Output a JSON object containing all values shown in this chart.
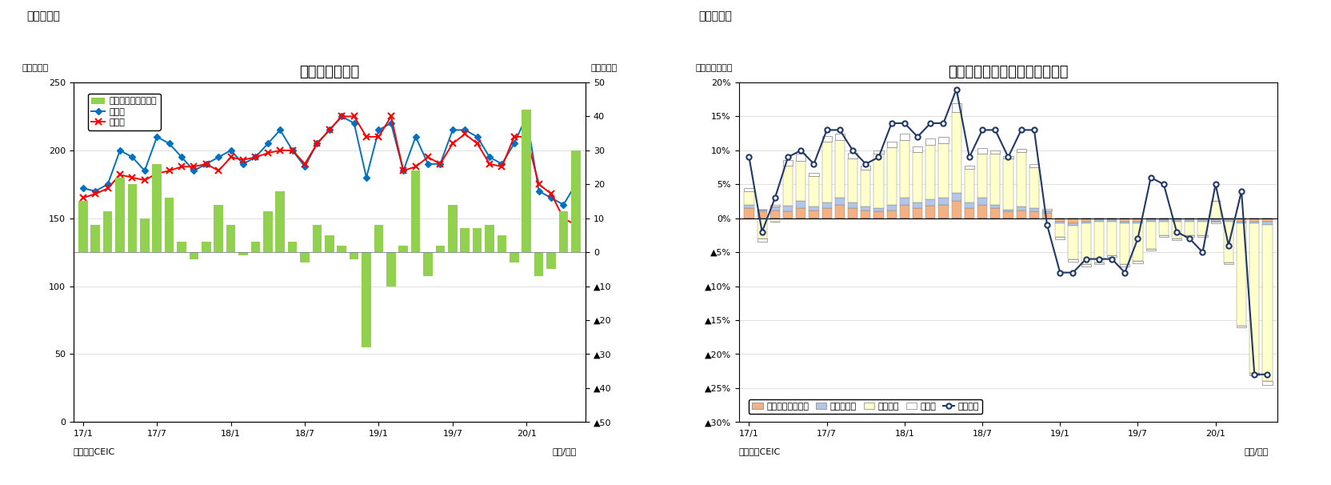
{
  "fig5": {
    "title": "タイの貿易収支",
    "ylabel_left": "（億ドル）",
    "ylabel_right": "（億ドル）",
    "xlabel": "（年/月）",
    "source": "（資料）CEIC",
    "panel_label": "（図表５）",
    "xtick_labels": [
      "17/1",
      "17/7",
      "18/1",
      "18/7",
      "19/1",
      "19/7",
      "20/1"
    ],
    "exports": [
      172,
      170,
      175,
      200,
      195,
      185,
      210,
      205,
      195,
      185,
      190,
      195,
      200,
      190,
      195,
      205,
      215,
      200,
      188,
      205,
      215,
      225,
      220,
      180,
      215,
      220,
      185,
      210,
      190,
      190,
      215,
      215,
      210,
      195,
      190,
      205,
      225,
      170,
      165,
      160,
      175
    ],
    "imports": [
      165,
      168,
      172,
      182,
      180,
      178,
      183,
      185,
      188,
      188,
      190,
      185,
      195,
      193,
      195,
      198,
      200,
      200,
      190,
      205,
      215,
      225,
      225,
      210,
      210,
      225,
      185,
      188,
      195,
      190,
      205,
      212,
      205,
      190,
      188,
      210,
      210,
      175,
      168,
      150,
      145
    ],
    "trade_balance": [
      15,
      8,
      12,
      22,
      20,
      10,
      26,
      16,
      3,
      -2,
      3,
      14,
      8,
      -1,
      3,
      12,
      18,
      3,
      -3,
      8,
      5,
      2,
      -2,
      -28,
      8,
      -10,
      2,
      24,
      -7,
      2,
      14,
      7,
      7,
      8,
      5,
      -3,
      42,
      -7,
      -5,
      12,
      30
    ],
    "legend": {
      "trade_balance": "貿易収支（右目盛）",
      "exports": "輸出額",
      "imports": "輸入額"
    },
    "colors": {
      "trade_balance": "#92D050",
      "exports": "#0070C0",
      "imports": "#FF0000"
    }
  },
  "fig6": {
    "title": "タイ　輸出の伸び率（品目別）",
    "ylabel_left": "（前年同月比）",
    "xlabel": "（年/月）",
    "source": "（資料）CEIC",
    "panel_label": "（図表６）",
    "xtick_labels": [
      "17/1",
      "17/7",
      "18/1",
      "18/7",
      "19/1",
      "19/7",
      "20/1"
    ],
    "agri": [
      0.015,
      0.01,
      0.012,
      0.01,
      0.015,
      0.012,
      0.015,
      0.02,
      0.015,
      0.012,
      0.01,
      0.012,
      0.02,
      0.015,
      0.018,
      0.02,
      0.025,
      0.015,
      0.02,
      0.015,
      0.01,
      0.012,
      0.01,
      0.008,
      -0.005,
      -0.008,
      -0.005,
      -0.003,
      -0.003,
      -0.005,
      -0.005,
      -0.003,
      -0.003,
      -0.003,
      -0.003,
      -0.003,
      -0.003,
      -0.003,
      -0.005,
      -0.005,
      -0.005
    ],
    "mining": [
      0.005,
      0.003,
      0.005,
      0.008,
      0.01,
      0.005,
      0.008,
      0.01,
      0.008,
      0.005,
      0.005,
      0.008,
      0.01,
      0.008,
      0.01,
      0.01,
      0.012,
      0.008,
      0.01,
      0.005,
      0.003,
      0.005,
      0.005,
      0.003,
      -0.003,
      -0.003,
      -0.003,
      -0.002,
      -0.002,
      -0.003,
      -0.003,
      -0.002,
      -0.002,
      -0.002,
      -0.002,
      -0.002,
      -0.002,
      -0.002,
      -0.003,
      -0.003,
      -0.005
    ],
    "industrial": [
      0.02,
      -0.03,
      -0.005,
      0.06,
      0.06,
      0.045,
      0.09,
      0.085,
      0.065,
      0.055,
      0.08,
      0.085,
      0.085,
      0.075,
      0.08,
      0.08,
      0.12,
      0.05,
      0.065,
      0.075,
      0.075,
      0.08,
      0.06,
      0.0,
      -0.02,
      -0.05,
      -0.06,
      -0.06,
      -0.05,
      -0.06,
      -0.055,
      -0.04,
      -0.02,
      -0.025,
      -0.02,
      -0.02,
      0.025,
      -0.06,
      -0.15,
      -0.22,
      -0.23
    ],
    "other": [
      0.005,
      -0.005,
      0.003,
      0.008,
      0.01,
      0.005,
      0.008,
      0.01,
      0.008,
      0.005,
      0.005,
      0.008,
      0.01,
      0.008,
      0.01,
      0.01,
      0.012,
      0.005,
      0.008,
      0.005,
      0.003,
      0.005,
      0.005,
      0.003,
      -0.003,
      -0.003,
      -0.003,
      -0.002,
      -0.002,
      -0.003,
      -0.003,
      -0.002,
      -0.002,
      -0.002,
      -0.002,
      -0.002,
      -0.002,
      -0.002,
      -0.003,
      -0.003,
      -0.005
    ],
    "total": [
      0.09,
      -0.02,
      0.03,
      0.09,
      0.1,
      0.08,
      0.13,
      0.13,
      0.1,
      0.08,
      0.09,
      0.14,
      0.14,
      0.12,
      0.14,
      0.14,
      0.19,
      0.09,
      0.13,
      0.13,
      0.09,
      0.13,
      0.13,
      -0.01,
      -0.08,
      -0.08,
      -0.06,
      -0.06,
      -0.06,
      -0.08,
      -0.03,
      0.06,
      0.05,
      -0.02,
      -0.03,
      -0.05,
      0.05,
      -0.04,
      0.04,
      -0.23,
      -0.23
    ],
    "legend": {
      "agri": "農産物・同加工品",
      "mining": "鉱物・燃料",
      "industrial": "工業製品",
      "other": "その他",
      "total": "輸出全体"
    },
    "colors": {
      "agri": "#F4B183",
      "mining": "#B4C6E7",
      "industrial": "#FFFFCC",
      "other": "#FFFFFF",
      "total": "#1F3864"
    }
  }
}
